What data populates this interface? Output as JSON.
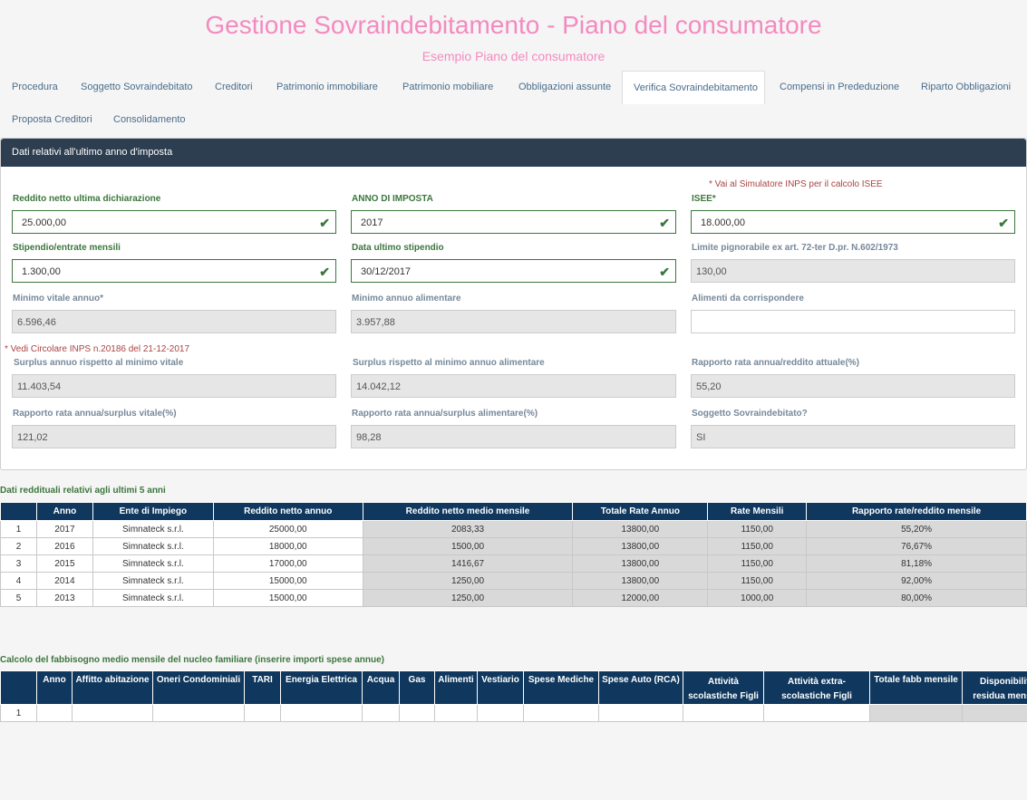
{
  "header": {
    "title": "Gestione Sovraindebitamento - Piano del consumatore",
    "subtitle": "Esempio Piano del consumatore"
  },
  "tabs": [
    {
      "label": "Procedura"
    },
    {
      "label": "Soggetto Sovraindebitato"
    },
    {
      "label": "Creditori"
    },
    {
      "label": "Patrimonio immobiliare"
    },
    {
      "label": "Patrimonio mobiliare"
    },
    {
      "label": "Obbligazioni assunte"
    },
    {
      "label": "Verifica Sovraindebitamento",
      "active": true
    },
    {
      "label": "Compensi in Prededuzione"
    },
    {
      "label": "Riparto Obbligazioni"
    },
    {
      "label": "Proposta Creditori"
    },
    {
      "label": "Consolidamento"
    }
  ],
  "panel": {
    "title": "Dati relativi all'ultimo anno d'imposta",
    "isee_link": "* Vai al Simulatore INPS per il calcolo ISEE",
    "circolare_note": "* Vedi Circolare INPS n.20186 del 21-12-2017",
    "fields": {
      "reddito_netto": {
        "label": "Reddito netto ultima dichiarazione",
        "value": "25.000,00"
      },
      "anno_imposta": {
        "label": "ANNO DI IMPOSTA",
        "value": "2017"
      },
      "isee": {
        "label": "ISEE*",
        "value": "18.000,00"
      },
      "stipendio": {
        "label": "Stipendio/entrate mensili",
        "value": "1.300,00"
      },
      "data_stipendio": {
        "label": "Data ultimo stipendio",
        "value": "30/12/2017"
      },
      "limite_pignorabile": {
        "label": "Limite pignorabile ex art. 72-ter D.pr. N.602/1973",
        "value": "130,00"
      },
      "minimo_vitale": {
        "label": "Minimo vitale annuo*",
        "value": "6.596,46"
      },
      "minimo_alimentare": {
        "label": "Minimo annuo alimentare",
        "value": "3.957,88"
      },
      "alimenti": {
        "label": "Alimenti da corrispondere",
        "value": ""
      },
      "surplus_vitale": {
        "label": "Surplus annuo rispetto al minimo vitale",
        "value": "11.403,54"
      },
      "surplus_alimentare": {
        "label": "Surplus rispetto al minimo annuo alimentare",
        "value": "14.042,12"
      },
      "rapporto_reddito": {
        "label": "Rapporto rata annua/reddito attuale(%)",
        "value": "55,20"
      },
      "rapporto_vitale": {
        "label": "Rapporto rata annua/surplus vitale(%)",
        "value": "121,02"
      },
      "rapporto_alimentare": {
        "label": "Rapporto rata annua/surplus alimentare(%)",
        "value": "98,28"
      },
      "sovraindebitato": {
        "label": "Soggetto Sovraindebitato?",
        "value": "SI"
      }
    }
  },
  "redditi": {
    "title": "Dati reddituali relativi agli ultimi 5 anni",
    "columns": [
      "",
      "Anno",
      "Ente di Impiego",
      "Reddito netto annuo",
      "Reddito netto medio mensile",
      "Totale Rate Annuo",
      "Rate Mensili",
      "Rapporto rate/reddito mensile"
    ],
    "rows": [
      [
        "1",
        "2017",
        "Simnateck s.r.l.",
        "25000,00",
        "2083,33",
        "13800,00",
        "1150,00",
        "55,20%"
      ],
      [
        "2",
        "2016",
        "Simnateck s.r.l.",
        "18000,00",
        "1500,00",
        "13800,00",
        "1150,00",
        "76,67%"
      ],
      [
        "3",
        "2015",
        "Simnateck s.r.l.",
        "17000,00",
        "1416,67",
        "13800,00",
        "1150,00",
        "81,18%"
      ],
      [
        "4",
        "2014",
        "Simnateck s.r.l.",
        "15000,00",
        "1250,00",
        "13800,00",
        "1150,00",
        "92,00%"
      ],
      [
        "5",
        "2013",
        "Simnateck s.r.l.",
        "15000,00",
        "1250,00",
        "12000,00",
        "1000,00",
        "80,00%"
      ]
    ]
  },
  "fabbisogno": {
    "title": "Calcolo del fabbisogno medio mensile del nucleo familiare (inserire importi spese annue)",
    "columns": [
      "",
      "Anno",
      "Affitto abitazione",
      "Oneri Condominiali",
      "TARI",
      "Energia Elettrica",
      "Acqua",
      "Gas",
      "Alimenti",
      "Vestiario",
      "Spese Mediche",
      "Spese Auto (RCA)",
      "Attività scolastiche Figli",
      "Attività extra-scolastiche Figli",
      "Totale fabb mensile",
      "Disponibilità residua mensile"
    ],
    "rows": [
      [
        "1",
        "",
        "",
        "",
        "",
        "",
        "",
        "",
        "",
        "",
        "",
        "",
        "",
        "",
        "",
        ""
      ]
    ]
  }
}
